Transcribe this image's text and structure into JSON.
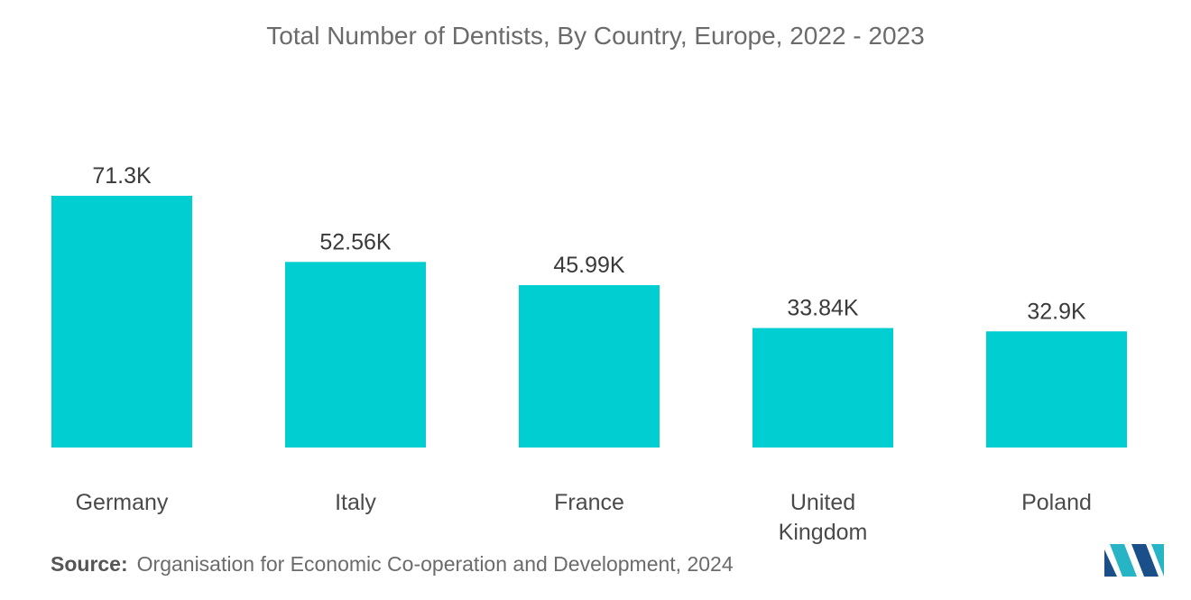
{
  "chart_data": {
    "type": "bar",
    "title": "Total Number of Dentists, By Country, Europe, 2022 - 2023",
    "categories": [
      "Germany",
      "Italy",
      "France",
      "United Kingdom",
      "Poland"
    ],
    "category_lines": [
      [
        "Germany"
      ],
      [
        "Italy"
      ],
      [
        "France"
      ],
      [
        "United",
        "Kingdom"
      ],
      [
        "Poland"
      ]
    ],
    "values": [
      71300,
      52560,
      45990,
      33840,
      32900
    ],
    "value_labels": [
      "71.3K",
      "52.56K",
      "45.99K",
      "33.84K",
      "32.9K"
    ],
    "xlabel": "",
    "ylabel": "",
    "ylim": [
      0,
      71300
    ],
    "grid": false,
    "legend": "none",
    "bar_color": "#00CED1"
  },
  "source": {
    "key": "Source:",
    "text": "Organisation for Economic Co-operation and Development, 2024"
  },
  "brand": {
    "logo_icon": "mordor-intelligence-logo-icon",
    "colors": [
      "#1b4f8a",
      "#27b4c4"
    ]
  }
}
